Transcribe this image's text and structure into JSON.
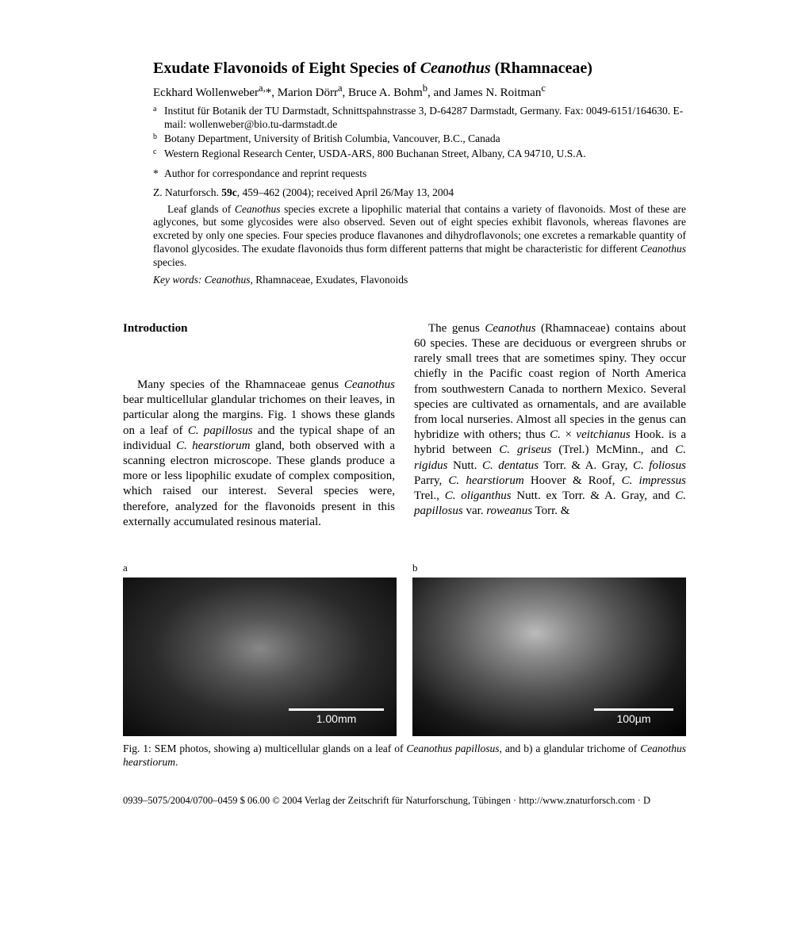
{
  "title_pre": "Exudate Flavonoids of Eight Species of ",
  "title_italic": "Ceanothus",
  "title_post": " (Rhamnaceae)",
  "authors_html": "Eckhard Wollenweber<sup>a,</sup>*, Marion Dörr<sup>a</sup>, Bruce A. Bohm<sup>b</sup>, and James N. Roitman<sup>c</sup>",
  "affiliations": [
    {
      "marker": "a",
      "text": "Institut für Botanik der TU Darmstadt, Schnittspahnstrasse 3, D-64287 Darmstadt, Germany. Fax: 0049-6151/164630. E-mail: wollenweber@bio.tu-darmstadt.de"
    },
    {
      "marker": "b",
      "text": "Botany Department, University of British Columbia, Vancouver, B.C., Canada"
    },
    {
      "marker": "c",
      "text": "Western Regional Research Center, USDA-ARS, 800 Buchanan Street, Albany, CA 94710, U.S.A."
    }
  ],
  "correspondence_marker": "*",
  "correspondence_text": "Author for correspondance and reprint requests",
  "citation_html": "Z. Naturforsch. <b>59c</b>, 459–462 (2004); received April 26/May 13, 2004",
  "abstract_html": "Leaf glands of <span class='italic'>Ceanothus</span> species excrete a lipophilic material that contains a variety of flavonoids. Most of these are aglycones, but some glycosides were also observed. Seven out of eight species exhibit flavonols, whereas flavones are excreted by only one species. Four species produce flavanones and dihydroflavonols; one excretes a remarkable quantity of flavonol glycosides. The exudate flavonoids thus form different patterns that might be characteristic for different <span class='italic'>Ceanothus</span> species.",
  "keywords_label": "Key words: ",
  "keywords_html": "<span class='italic'>Ceanothus</span>, Rhamnaceae, Exudates, Flavonoids",
  "section_intro": "Introduction",
  "col1_para_html": "Many species of the Rhamnaceae genus <span class='italic'>Ceanothus</span> bear multicellular glandular trichomes on their leaves, in particular along the margins. Fig. 1 shows these glands on a leaf of <span class='italic'>C. papillosus</span> and the typical shape of an individual <span class='italic'>C. hearstiorum</span> gland, both observed with a scanning electron microscope. These glands produce a more or less lipophilic exudate of complex composition, which raised our interest. Several species were, therefore, analyzed for the flavonoids present in this externally accumulated resinous material.",
  "col2_para_html": "The genus <span class='italic'>Ceanothus</span> (Rhamnaceae) contains about 60 species. These are deciduous or evergreen shrubs or rarely small trees that are sometimes spiny. They occur chiefly in the Pacific coast region of North America from southwestern Canada to northern Mexico. Several species are cultivated as ornamentals, and are available from local nurseries. Almost all species in the genus can hybridize with others; thus <span class='italic'>C.</span> × <span class='italic'>veitchianus</span> Hook. is a hybrid between <span class='italic'>C. griseus</span> (Trel.) McMinn., and <span class='italic'>C. rigidus</span> Nutt. <span class='italic'>C. dentatus</span> Torr. & A. Gray, <span class='italic'>C. foliosus</span> Parry, <span class='italic'>C. hearstiorum</span> Hoover & Roof, <span class='italic'>C. impressus</span> Trel., <span class='italic'>C. oliganthus</span> Nutt. ex Torr. & A. Gray, and <span class='italic'>C. papillosus</span> var. <span class='italic'>roweanus</span> Torr. &",
  "fig": {
    "label_a": "a",
    "label_b": "b",
    "scale_a": "1.00mm",
    "scale_b": "100µm",
    "caption_html": "Fig. 1: SEM photos, showing a) multicellular glands on a leaf of <span class='italic'>Ceanothus papillosus</span>, and b) a glandular trichome of <span class='italic'>Ceanothus hearstiorum</span>."
  },
  "footer": "0939–5075/2004/0700–0459 $ 06.00    © 2004 Verlag der Zeitschrift für Naturforschung, Tübingen · http://www.znaturforsch.com · D"
}
